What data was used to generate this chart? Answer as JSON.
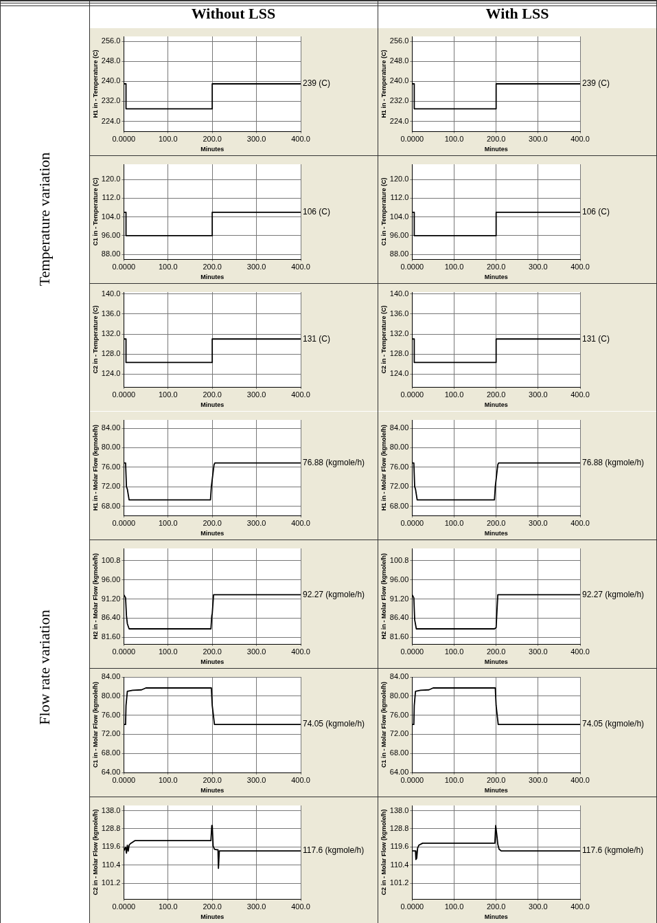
{
  "chart_data": [
    {
      "type": "other",
      "annotations": [
        "Without LSS",
        "With LSS",
        "Temperature variation",
        "Flow rate variation"
      ]
    },
    {
      "type": "line",
      "xlabel": "Minutes",
      "ylabel": "H1 in - Temperature (C)",
      "xlim": [
        0,
        400
      ],
      "xticks": [
        {
          "value": 0,
          "label": "0.0000"
        },
        {
          "value": 100,
          "label": "100.0"
        },
        {
          "value": 200,
          "label": "200.0"
        },
        {
          "value": 300,
          "label": "300.0"
        },
        {
          "value": 400,
          "label": "400.0"
        }
      ],
      "ylim": [
        220,
        258
      ],
      "yticks": [
        {
          "value": 256,
          "label": "256.0"
        },
        {
          "value": 248,
          "label": "248.0"
        },
        {
          "value": 240,
          "label": "240.0"
        },
        {
          "value": 232,
          "label": "232.0"
        },
        {
          "value": 224,
          "label": "224.0"
        }
      ],
      "grid": true,
      "annotations": [
        "239 (C)"
      ],
      "series": [
        {
          "color": "#000000",
          "x": [
            0,
            5,
            5,
            200,
            200,
            400
          ],
          "values": [
            239,
            239,
            229,
            229,
            239,
            239
          ]
        }
      ]
    },
    {
      "type": "line",
      "xlabel": "Minutes",
      "ylabel": "H1 in - Temperature (C)",
      "xlim": [
        0,
        400
      ],
      "xticks": [
        {
          "value": 0,
          "label": "0.0000"
        },
        {
          "value": 100,
          "label": "100.0"
        },
        {
          "value": 200,
          "label": "200.0"
        },
        {
          "value": 300,
          "label": "300.0"
        },
        {
          "value": 400,
          "label": "400.0"
        }
      ],
      "ylim": [
        220,
        258
      ],
      "yticks": [
        {
          "value": 256,
          "label": "256.0"
        },
        {
          "value": 248,
          "label": "248.0"
        },
        {
          "value": 240,
          "label": "240.0"
        },
        {
          "value": 232,
          "label": "232.0"
        },
        {
          "value": 224,
          "label": "224.0"
        }
      ],
      "grid": true,
      "annotations": [
        "239 (C)"
      ],
      "series": [
        {
          "color": "#000000",
          "x": [
            0,
            5,
            5,
            200,
            200,
            400
          ],
          "values": [
            239,
            239,
            229,
            229,
            239,
            239
          ]
        }
      ]
    },
    {
      "type": "line",
      "xlabel": "Minutes",
      "ylabel": "C1 in - Temperature (C)",
      "xlim": [
        0,
        400
      ],
      "xticks": [
        {
          "value": 0,
          "label": "0.0000"
        },
        {
          "value": 100,
          "label": "100.0"
        },
        {
          "value": 200,
          "label": "200.0"
        },
        {
          "value": 300,
          "label": "300.0"
        },
        {
          "value": 400,
          "label": "400.0"
        }
      ],
      "ylim": [
        86,
        126.5
      ],
      "yticks": [
        {
          "value": 120,
          "label": "120.0"
        },
        {
          "value": 112,
          "label": "112.0"
        },
        {
          "value": 104,
          "label": "104.0"
        },
        {
          "value": 96,
          "label": "96.00"
        },
        {
          "value": 88,
          "label": "88.00"
        }
      ],
      "grid": true,
      "annotations": [
        "106 (C)"
      ],
      "series": [
        {
          "color": "#000000",
          "x": [
            0,
            5,
            5,
            200,
            200,
            400
          ],
          "values": [
            106,
            106,
            96,
            96,
            106,
            106
          ]
        }
      ]
    },
    {
      "type": "line",
      "xlabel": "Minutes",
      "ylabel": "C1 in - Temperature (C)",
      "xlim": [
        0,
        400
      ],
      "xticks": [
        {
          "value": 0,
          "label": "0.0000"
        },
        {
          "value": 100,
          "label": "100.0"
        },
        {
          "value": 200,
          "label": "200.0"
        },
        {
          "value": 300,
          "label": "300.0"
        },
        {
          "value": 400,
          "label": "400.0"
        }
      ],
      "ylim": [
        86,
        126.5
      ],
      "yticks": [
        {
          "value": 120,
          "label": "120.0"
        },
        {
          "value": 112,
          "label": "112.0"
        },
        {
          "value": 104,
          "label": "104.0"
        },
        {
          "value": 96,
          "label": "96.00"
        },
        {
          "value": 88,
          "label": "88.00"
        }
      ],
      "grid": true,
      "annotations": [
        "106 (C)"
      ],
      "series": [
        {
          "color": "#000000",
          "x": [
            0,
            5,
            5,
            200,
            200,
            400
          ],
          "values": [
            106,
            106,
            96,
            96,
            106,
            106
          ]
        }
      ]
    },
    {
      "type": "line",
      "xlabel": "Minutes",
      "ylabel": "C2 in - Temperature (C)",
      "xlim": [
        0,
        400
      ],
      "xticks": [
        {
          "value": 0,
          "label": "0.0000"
        },
        {
          "value": 100,
          "label": "100.0"
        },
        {
          "value": 200,
          "label": "200.0"
        },
        {
          "value": 300,
          "label": "300.0"
        },
        {
          "value": 400,
          "label": "400.0"
        }
      ],
      "ylim": [
        121.4,
        140.4
      ],
      "yticks": [
        {
          "value": 140,
          "label": "140.0"
        },
        {
          "value": 136,
          "label": "136.0"
        },
        {
          "value": 132,
          "label": "132.0"
        },
        {
          "value": 128,
          "label": "128.0"
        },
        {
          "value": 124,
          "label": "124.0"
        }
      ],
      "grid": true,
      "annotations": [
        "131 (C)"
      ],
      "series": [
        {
          "color": "#000000",
          "x": [
            0,
            5,
            5,
            200,
            200,
            400
          ],
          "values": [
            131,
            131,
            126.3,
            126.3,
            131,
            131
          ]
        }
      ]
    },
    {
      "type": "line",
      "xlabel": "Minutes",
      "ylabel": "C2 in - Temperature (C)",
      "xlim": [
        0,
        400
      ],
      "xticks": [
        {
          "value": 0,
          "label": "0.0000"
        },
        {
          "value": 100,
          "label": "100.0"
        },
        {
          "value": 200,
          "label": "200.0"
        },
        {
          "value": 300,
          "label": "300.0"
        },
        {
          "value": 400,
          "label": "400.0"
        }
      ],
      "ylim": [
        121.4,
        140.4
      ],
      "yticks": [
        {
          "value": 140,
          "label": "140.0"
        },
        {
          "value": 136,
          "label": "136.0"
        },
        {
          "value": 132,
          "label": "132.0"
        },
        {
          "value": 128,
          "label": "128.0"
        },
        {
          "value": 124,
          "label": "124.0"
        }
      ],
      "grid": true,
      "annotations": [
        "131 (C)"
      ],
      "series": [
        {
          "color": "#000000",
          "x": [
            0,
            5,
            5,
            200,
            200,
            400
          ],
          "values": [
            131,
            131,
            126.3,
            126.3,
            131,
            131
          ]
        }
      ]
    },
    {
      "type": "line",
      "xlabel": "Minutes",
      "ylabel": "H1 in - Molar Flow (kgmole/h)",
      "xlim": [
        0,
        400
      ],
      "xticks": [
        {
          "value": 0,
          "label": "0.0000"
        },
        {
          "value": 100,
          "label": "100.0"
        },
        {
          "value": 200,
          "label": "200.0"
        },
        {
          "value": 300,
          "label": "300.0"
        },
        {
          "value": 400,
          "label": "400.0"
        }
      ],
      "ylim": [
        66.1,
        85.7
      ],
      "yticks": [
        {
          "value": 84,
          "label": "84.00"
        },
        {
          "value": 80,
          "label": "80.00"
        },
        {
          "value": 76,
          "label": "76.00"
        },
        {
          "value": 72,
          "label": "72.00"
        },
        {
          "value": 68,
          "label": "68.00"
        }
      ],
      "grid": true,
      "annotations": [
        "76.88 (kgmole/h)"
      ],
      "series": [
        {
          "color": "#000000",
          "x": [
            0,
            4,
            6,
            8,
            12,
            196,
            198,
            204,
            206,
            400
          ],
          "values": [
            76.88,
            76.88,
            72,
            71.5,
            69.3,
            69.3,
            72,
            76.5,
            76.88,
            76.88
          ]
        }
      ]
    },
    {
      "type": "line",
      "xlabel": "Minutes",
      "ylabel": "H1 in - Molar Flow (kgmole/h)",
      "xlim": [
        0,
        400
      ],
      "xticks": [
        {
          "value": 0,
          "label": "0.0000"
        },
        {
          "value": 100,
          "label": "100.0"
        },
        {
          "value": 200,
          "label": "200.0"
        },
        {
          "value": 300,
          "label": "300.0"
        },
        {
          "value": 400,
          "label": "400.0"
        }
      ],
      "ylim": [
        66.1,
        85.7
      ],
      "yticks": [
        {
          "value": 84,
          "label": "84.00"
        },
        {
          "value": 80,
          "label": "80.00"
        },
        {
          "value": 76,
          "label": "76.00"
        },
        {
          "value": 72,
          "label": "72.00"
        },
        {
          "value": 68,
          "label": "68.00"
        }
      ],
      "grid": true,
      "annotations": [
        "76.88 (kgmole/h)"
      ],
      "series": [
        {
          "color": "#000000",
          "x": [
            0,
            4,
            6,
            8,
            12,
            196,
            198,
            204,
            206,
            400
          ],
          "values": [
            76.88,
            76.88,
            72,
            71.5,
            69.3,
            69.3,
            72,
            76.5,
            76.88,
            76.88
          ]
        }
      ]
    },
    {
      "type": "line",
      "xlabel": "Minutes",
      "ylabel": "H2 in - Molar Flow (kgmole/h)",
      "xlim": [
        0,
        400
      ],
      "xticks": [
        {
          "value": 0,
          "label": "0.0000"
        },
        {
          "value": 100,
          "label": "100.0"
        },
        {
          "value": 200,
          "label": "200.0"
        },
        {
          "value": 300,
          "label": "300.0"
        },
        {
          "value": 400,
          "label": "400.0"
        }
      ],
      "ylim": [
        79.9,
        103.9
      ],
      "yticks": [
        {
          "value": 100.8,
          "label": "100.8"
        },
        {
          "value": 96,
          "label": "96.00"
        },
        {
          "value": 91.2,
          "label": "91.20"
        },
        {
          "value": 86.4,
          "label": "86.40"
        },
        {
          "value": 81.6,
          "label": "81.60"
        }
      ],
      "grid": true,
      "annotations": [
        "92.27 (kgmole/h)"
      ],
      "series": [
        {
          "color": "#000000",
          "x": [
            0,
            4,
            6,
            8,
            12,
            196,
            197,
            199,
            200,
            203,
            400
          ],
          "values": [
            92.27,
            91.5,
            87,
            85,
            83.7,
            83.7,
            83.7,
            87,
            87.5,
            92.27,
            92.27
          ]
        }
      ]
    },
    {
      "type": "line",
      "xlabel": "Minutes",
      "ylabel": "H2 in - Molar Flow (kgmole/h)",
      "xlim": [
        0,
        400
      ],
      "xticks": [
        {
          "value": 0,
          "label": "0.0000"
        },
        {
          "value": 100,
          "label": "100.0"
        },
        {
          "value": 200,
          "label": "200.0"
        },
        {
          "value": 300,
          "label": "300.0"
        },
        {
          "value": 400,
          "label": "400.0"
        }
      ],
      "ylim": [
        79.9,
        103.9
      ],
      "yticks": [
        {
          "value": 100.8,
          "label": "100.8"
        },
        {
          "value": 96,
          "label": "96.00"
        },
        {
          "value": 91.2,
          "label": "91.20"
        },
        {
          "value": 86.4,
          "label": "86.40"
        },
        {
          "value": 81.6,
          "label": "81.60"
        }
      ],
      "grid": true,
      "annotations": [
        "92.27 (kgmole/h)"
      ],
      "series": [
        {
          "color": "#000000",
          "x": [
            0,
            4,
            6,
            10,
            196,
            200,
            204,
            400
          ],
          "values": [
            92.27,
            91.5,
            86,
            83.7,
            83.7,
            84,
            92.27,
            92.27
          ]
        }
      ]
    },
    {
      "type": "line",
      "xlabel": "Minutes",
      "ylabel": "C1 in - Molar Flow (kgmole/h)",
      "xlim": [
        0,
        400
      ],
      "xticks": [
        {
          "value": 0,
          "label": "0.0000"
        },
        {
          "value": 100,
          "label": "100.0"
        },
        {
          "value": 200,
          "label": "200.0"
        },
        {
          "value": 300,
          "label": "300.0"
        },
        {
          "value": 400,
          "label": "400.0"
        }
      ],
      "ylim": [
        64,
        84
      ],
      "yticks": [
        {
          "value": 84,
          "label": "84.00"
        },
        {
          "value": 80,
          "label": "80.00"
        },
        {
          "value": 76,
          "label": "76.00"
        },
        {
          "value": 72,
          "label": "72.00"
        },
        {
          "value": 68,
          "label": "68.00"
        },
        {
          "value": 64,
          "label": "64.00"
        }
      ],
      "grid": true,
      "annotations": [
        "74.05 (kgmole/h)"
      ],
      "series": [
        {
          "color": "#000000",
          "x": [
            0,
            4,
            5,
            8,
            20,
            40,
            50,
            198,
            200,
            205,
            400
          ],
          "values": [
            74.05,
            74.05,
            78,
            81,
            81.2,
            81.3,
            81.7,
            81.7,
            78,
            74.05,
            74.05
          ]
        }
      ]
    },
    {
      "type": "line",
      "xlabel": "Minutes",
      "ylabel": "C1 in - Molar Flow (kgmole/h)",
      "xlim": [
        0,
        400
      ],
      "xticks": [
        {
          "value": 0,
          "label": "0.0000"
        },
        {
          "value": 100,
          "label": "100.0"
        },
        {
          "value": 200,
          "label": "200.0"
        },
        {
          "value": 300,
          "label": "300.0"
        },
        {
          "value": 400,
          "label": "400.0"
        }
      ],
      "ylim": [
        64,
        84
      ],
      "yticks": [
        {
          "value": 84,
          "label": "84.00"
        },
        {
          "value": 80,
          "label": "80.00"
        },
        {
          "value": 76,
          "label": "76.00"
        },
        {
          "value": 72,
          "label": "72.00"
        },
        {
          "value": 68,
          "label": "68.00"
        },
        {
          "value": 64,
          "label": "64.00"
        }
      ],
      "grid": true,
      "annotations": [
        "74.05 (kgmole/h)"
      ],
      "series": [
        {
          "color": "#000000",
          "x": [
            0,
            4,
            5,
            8,
            20,
            40,
            50,
            198,
            200,
            205,
            400
          ],
          "values": [
            74.05,
            74.05,
            78,
            81,
            81.2,
            81.3,
            81.7,
            81.7,
            78,
            74.05,
            74.05
          ]
        }
      ]
    },
    {
      "type": "line",
      "xlabel": "Minutes",
      "ylabel": "C2 in - Molar Flow (kgmole/h)",
      "xlim": [
        0,
        400
      ],
      "xticks": [
        {
          "value": 0,
          "label": "0.0000"
        },
        {
          "value": 100,
          "label": "100.0"
        },
        {
          "value": 200,
          "label": "200.0"
        },
        {
          "value": 300,
          "label": "300.0"
        },
        {
          "value": 400,
          "label": "400.0"
        }
      ],
      "ylim": [
        93.3,
        140.6
      ],
      "yticks": [
        {
          "value": 138,
          "label": "138.0"
        },
        {
          "value": 128.8,
          "label": "128.8"
        },
        {
          "value": 119.6,
          "label": "119.6"
        },
        {
          "value": 110.4,
          "label": "110.4"
        },
        {
          "value": 101.2,
          "label": "101.2"
        }
      ],
      "grid": true,
      "annotations": [
        "117.6 (kgmole/h)"
      ],
      "series": [
        {
          "color": "#000000",
          "x": [
            0,
            4,
            6,
            8,
            10,
            12,
            15,
            25,
            197,
            199,
            200,
            202,
            205,
            210,
            213,
            214,
            216,
            400
          ],
          "values": [
            117.6,
            119.5,
            116.5,
            120.5,
            117.5,
            120.5,
            121.3,
            122.8,
            122.8,
            130.5,
            130.5,
            120,
            118.5,
            118.2,
            118.2,
            108.8,
            117.6,
            117.6
          ]
        }
      ]
    },
    {
      "type": "line",
      "xlabel": "Minutes",
      "ylabel": "C2 in - Molar Flow (kgmole/h)",
      "xlim": [
        0,
        400
      ],
      "xticks": [
        {
          "value": 0,
          "label": "0.0000"
        },
        {
          "value": 100,
          "label": "100.0"
        },
        {
          "value": 200,
          "label": "200.0"
        },
        {
          "value": 300,
          "label": "300.0"
        },
        {
          "value": 400,
          "label": "400.0"
        }
      ],
      "ylim": [
        93.3,
        140.6
      ],
      "yticks": [
        {
          "value": 138,
          "label": "138.0"
        },
        {
          "value": 128.8,
          "label": "128.8"
        },
        {
          "value": 119.6,
          "label": "119.6"
        },
        {
          "value": 110.4,
          "label": "110.4"
        },
        {
          "value": 101.2,
          "label": "101.2"
        }
      ],
      "grid": true,
      "annotations": [
        "117.6 (kgmole/h)"
      ],
      "series": [
        {
          "color": "#000000",
          "x": [
            0,
            8,
            9,
            11,
            13,
            16,
            25,
            197,
            199,
            200,
            202,
            204,
            207,
            212,
            400
          ],
          "values": [
            117.6,
            117.6,
            113.3,
            114,
            119,
            120.5,
            121.5,
            121.5,
            130.5,
            130.5,
            125,
            121,
            118.5,
            117.6,
            117.6
          ]
        }
      ]
    }
  ]
}
